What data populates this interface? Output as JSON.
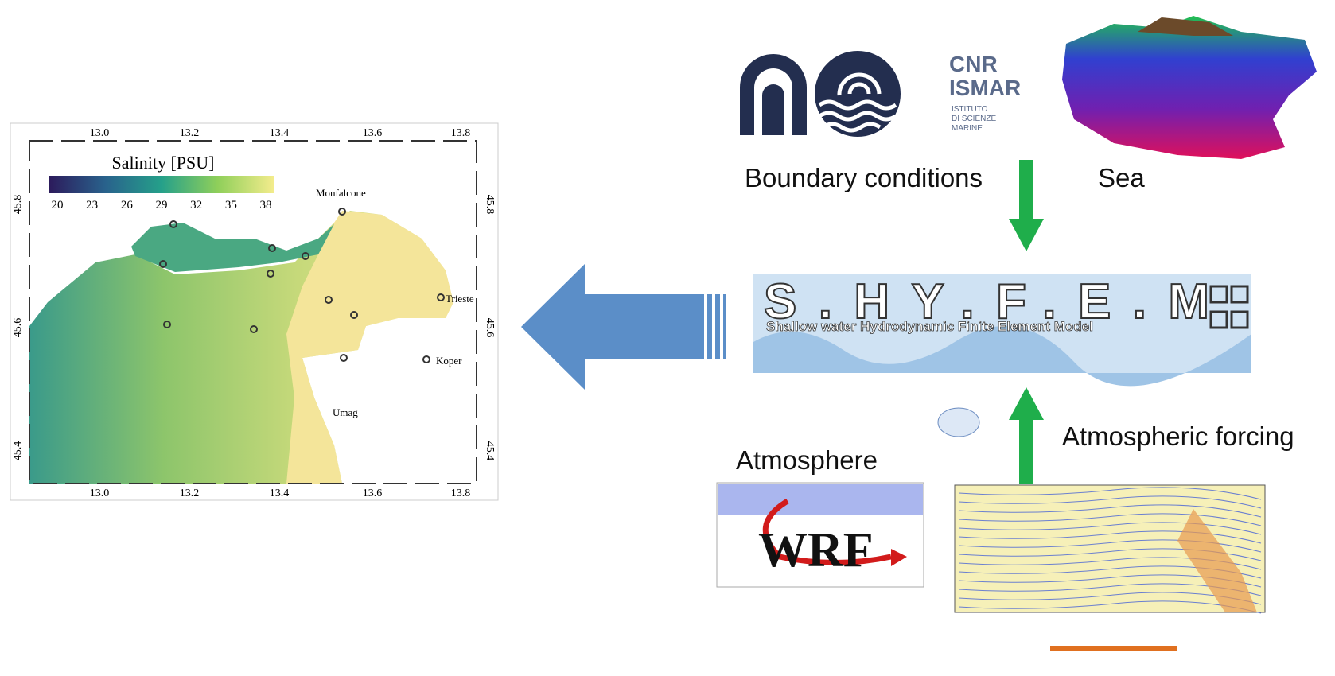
{
  "map": {
    "title": "Salinity [PSU]",
    "colorbar_ticks": [
      20,
      23,
      26,
      29,
      32,
      35,
      38
    ],
    "lon_ticks": [
      "13.0",
      "13.2",
      "13.4",
      "13.6",
      "13.8"
    ],
    "lat_ticks": [
      "45.8",
      "45.6",
      "45.4"
    ],
    "places": [
      "Monfalcone",
      "Trieste",
      "Koper",
      "Umag"
    ]
  },
  "logo": {
    "name": "CNR",
    "institute": "ISMAR",
    "subtitle": [
      "ISTITUTO",
      "DI SCIENZE",
      "MARINE"
    ]
  },
  "labels": {
    "boundary": "Boundary conditions",
    "sea": "Sea",
    "forcing": "Atmospheric forcing",
    "atmosphere": "Atmosphere"
  },
  "model": {
    "name": "S.HY.F.E.M",
    "full_name": "Shallow water Hydrodynamic Finite Element Model"
  },
  "wrf": "WRF"
}
